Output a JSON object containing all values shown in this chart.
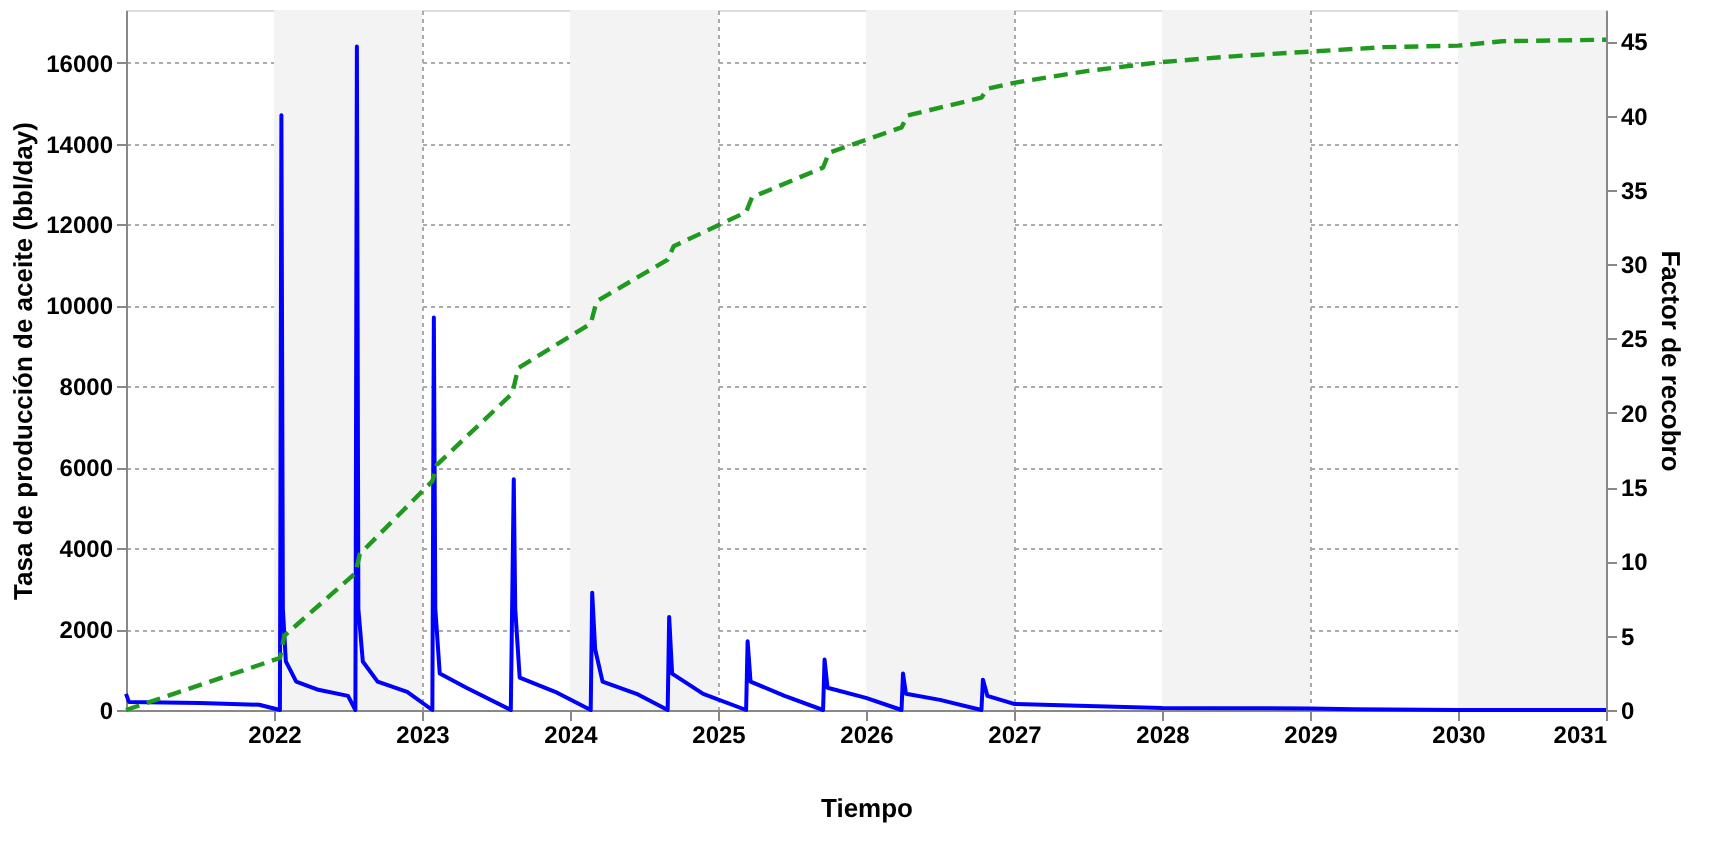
{
  "chart_data": {
    "type": "line",
    "xlabel": "Tiempo",
    "ylabel": "Tasa de producción de aceite (bbl/day)",
    "y2label": "Factor de recobro",
    "xlim": [
      2021,
      2031
    ],
    "xticks": [
      2022,
      2023,
      2024,
      2025,
      2026,
      2027,
      2028,
      2029,
      2030,
      2031
    ],
    "ylim": [
      0,
      17300
    ],
    "yticks": [
      0,
      2000,
      4000,
      6000,
      8000,
      10000,
      12000,
      14000,
      16000
    ],
    "y2lim": [
      0,
      47.1
    ],
    "y2ticks": [
      0,
      5,
      10,
      15,
      20,
      25,
      30,
      35,
      40,
      45
    ],
    "grid": true,
    "bands": [
      {
        "axis": "x",
        "from": 2022,
        "to": 2023,
        "color": "#f3f3f3"
      },
      {
        "axis": "x",
        "from": 2024,
        "to": 2025,
        "color": "#f3f3f3"
      },
      {
        "axis": "x",
        "from": 2026,
        "to": 2027,
        "color": "#f3f3f3"
      },
      {
        "axis": "x",
        "from": 2028,
        "to": 2029,
        "color": "#f3f3f3"
      },
      {
        "axis": "x",
        "from": 2030,
        "to": 2031,
        "color": "#f3f3f3"
      }
    ],
    "series": [
      {
        "color": "#0000ff",
        "line_style": "solid",
        "x": [
          2021.0,
          2021.02,
          2021.5,
          2021.9,
          2022.04,
          2022.05,
          2022.06,
          2022.08,
          2022.15,
          2022.3,
          2022.5,
          2022.55,
          2022.56,
          2022.57,
          2022.6,
          2022.7,
          2022.9,
          2023.07,
          2023.08,
          2023.09,
          2023.12,
          2023.3,
          2023.6,
          2023.62,
          2023.63,
          2023.66,
          2023.9,
          2024.14,
          2024.15,
          2024.17,
          2024.22,
          2024.45,
          2024.66,
          2024.67,
          2024.69,
          2024.9,
          2025.19,
          2025.2,
          2025.22,
          2025.45,
          2025.71,
          2025.72,
          2025.74,
          2026.0,
          2026.24,
          2026.25,
          2026.27,
          2026.5,
          2026.78,
          2026.79,
          2026.82,
          2027.0,
          2027.5,
          2028.0,
          2029.0,
          2029.3,
          2030.0,
          2031.0
        ],
        "values": [
          400,
          200,
          170,
          130,
          0,
          14700,
          2500,
          1200,
          700,
          500,
          350,
          0,
          16400,
          2500,
          1200,
          700,
          450,
          0,
          9700,
          2500,
          900,
          550,
          0,
          5700,
          2500,
          800,
          450,
          0,
          2900,
          1500,
          700,
          400,
          0,
          2300,
          900,
          400,
          0,
          1700,
          700,
          350,
          0,
          1250,
          550,
          300,
          0,
          900,
          400,
          250,
          0,
          750,
          350,
          150,
          100,
          50,
          40,
          20,
          0,
          0
        ]
      },
      {
        "color": "#1f9a1f",
        "line_style": "dashed",
        "axis": "y2",
        "x": [
          2021.0,
          2022.04,
          2022.07,
          2022.55,
          2022.58,
          2023.07,
          2023.1,
          2023.61,
          2023.65,
          2024.14,
          2024.18,
          2024.66,
          2024.7,
          2025.19,
          2025.23,
          2025.71,
          2025.75,
          2026.24,
          2026.28,
          2026.78,
          2026.82,
          2027.0,
          2027.5,
          2028.0,
          2028.5,
          2029.0,
          2029.5,
          2030.0,
          2030.3,
          2031.0
        ],
        "values": [
          0,
          3.5,
          5,
          9.2,
          10.5,
          15.4,
          16.5,
          21.3,
          23,
          26,
          27.5,
          30.3,
          31.2,
          33.5,
          34.5,
          36.5,
          37.5,
          39.2,
          40,
          41.2,
          41.8,
          42.2,
          43,
          43.6,
          44,
          44.3,
          44.6,
          44.7,
          45,
          45.1
        ]
      }
    ]
  }
}
